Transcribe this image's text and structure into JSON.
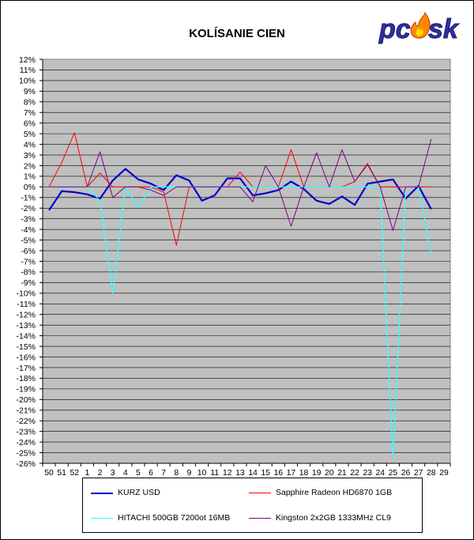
{
  "chart_data": {
    "type": "line",
    "title": "KOLÍSANIE CIEN",
    "xlabel": "",
    "ylabel": "",
    "categories": [
      "50",
      "51",
      "52",
      "1",
      "2",
      "3",
      "4",
      "5",
      "6",
      "7",
      "8",
      "9",
      "10",
      "11",
      "12",
      "13",
      "14",
      "15",
      "16",
      "17",
      "18",
      "19",
      "20",
      "21",
      "22",
      "23",
      "24",
      "25",
      "26",
      "27",
      "28",
      "29"
    ],
    "ylim": [
      -26,
      12
    ],
    "ytick_step": 1,
    "y_unit": "%",
    "grid": true,
    "legend": "bottom",
    "background": "#c0c0c0",
    "series": [
      {
        "name": "KURZ USD",
        "color": "#0000cc",
        "width": 2.2,
        "values": [
          -2.2,
          -0.4,
          -0.5,
          -0.7,
          -1.1,
          0.6,
          1.7,
          0.7,
          0.3,
          -0.3,
          1.1,
          0.6,
          -1.3,
          -0.8,
          0.8,
          0.8,
          -0.8,
          -0.6,
          -0.3,
          0.5,
          -0.2,
          -1.3,
          -1.6,
          -0.9,
          -1.7,
          0.3,
          0.5,
          0.7,
          -1.1,
          0.1,
          -2.1,
          null
        ]
      },
      {
        "name": "Sapphire Radeon HD6870 1GB",
        "color": "#ff0000",
        "width": 1,
        "values": [
          0,
          2.3,
          5.1,
          0,
          1.3,
          0,
          0,
          0,
          0,
          -0.5,
          -5.5,
          0,
          0,
          0,
          0,
          1.4,
          0,
          0,
          0,
          3.5,
          0,
          0,
          0,
          0,
          0.5,
          2.2,
          0,
          0,
          0,
          0,
          0,
          null
        ]
      },
      {
        "name": "HITACHI 500GB 7200ot 16MB",
        "color": "#33ffff",
        "width": 1.3,
        "values": [
          0,
          0,
          0,
          0,
          -1.3,
          -10,
          0,
          -1.9,
          0,
          0,
          0,
          0,
          0,
          0,
          0,
          0,
          0,
          0,
          0,
          0,
          0,
          0,
          0,
          0,
          0,
          0,
          0,
          -25.5,
          0,
          0,
          -6.3,
          null
        ]
      },
      {
        "name": "Kingston 2x2GB 1333MHz CL9",
        "color": "#800080",
        "width": 1,
        "values": [
          0,
          0,
          0,
          0,
          3.3,
          -1,
          0,
          0,
          -0.3,
          -0.8,
          0,
          0,
          0,
          0,
          0,
          0,
          -1.4,
          2,
          0,
          -3.7,
          0,
          3.2,
          0,
          3.5,
          0.5,
          2.1,
          0,
          -4.1,
          0,
          0,
          4.5,
          null
        ]
      }
    ]
  },
  "logo": {
    "text": "pc",
    "text2": "sk",
    "icon": "flame-icon"
  }
}
